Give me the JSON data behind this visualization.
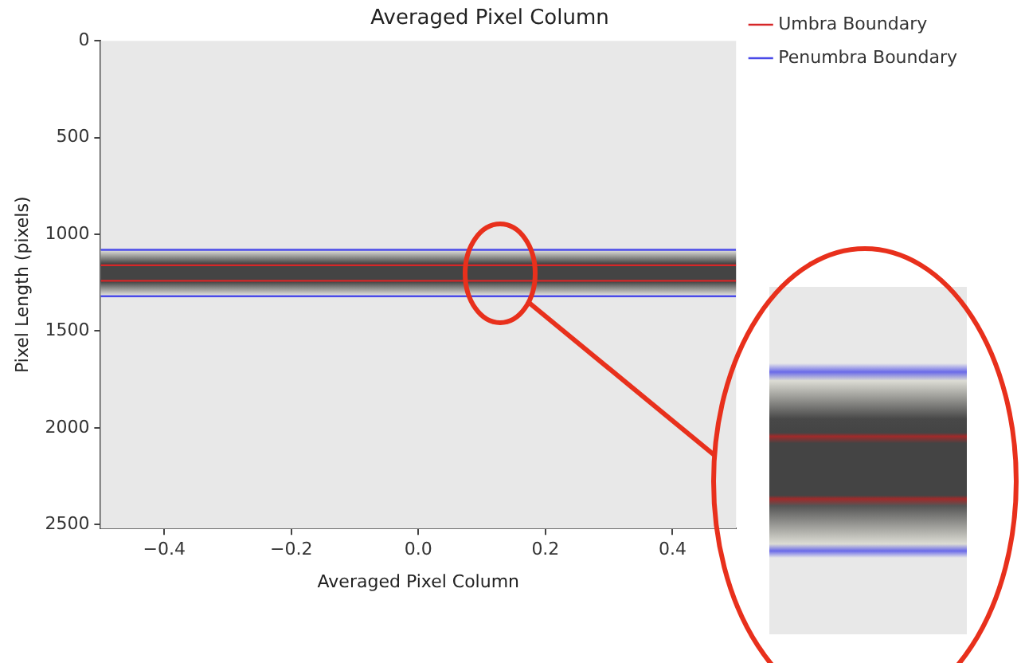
{
  "chart_data": {
    "type": "line",
    "title": "Averaged Pixel Column",
    "xlabel": "Averaged Pixel Column",
    "ylabel": "Pixel Length (pixels)",
    "xlim": [
      -0.5,
      0.5
    ],
    "xticks": [
      {
        "value": -0.4,
        "label": "−0.4"
      },
      {
        "value": -0.2,
        "label": "−0.2"
      },
      {
        "value": 0,
        "label": "0.0"
      },
      {
        "value": 0.2,
        "label": "0.2"
      },
      {
        "value": 0.4,
        "label": "0.4"
      }
    ],
    "ylim": [
      2520,
      0
    ],
    "yticks": [
      0,
      500,
      1000,
      1500,
      2000,
      2500
    ],
    "series": [
      {
        "name": "Umbra Boundary",
        "color": "#d62728",
        "values": [
          1160,
          1160
        ]
      },
      {
        "color": "#d62728",
        "values": [
          1240,
          1240
        ]
      },
      {
        "name": "Penumbra Boundary",
        "color": "#4a4ae8",
        "values": [
          1080,
          1080
        ]
      },
      {
        "color": "#4a4ae8",
        "values": [
          1320,
          1320
        ]
      }
    ],
    "x": [
      -0.5,
      0.5
    ],
    "bands": [
      {
        "axis": "y",
        "from": 1082,
        "to": 1315,
        "color": "#444444"
      }
    ],
    "grid": false,
    "legend": "top right",
    "marker": "none",
    "line_style": "solid"
  }
}
